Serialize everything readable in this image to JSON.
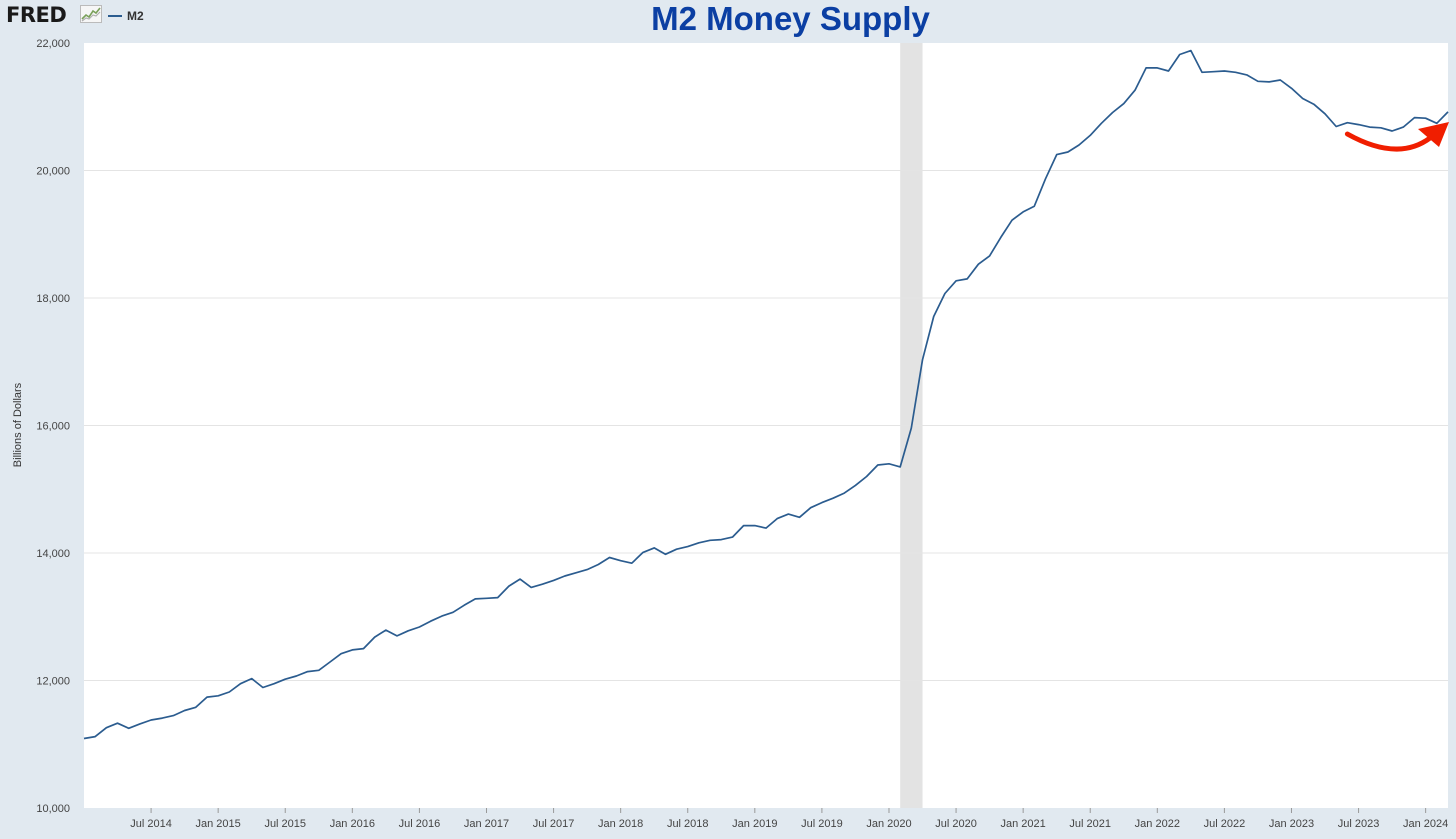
{
  "header": {
    "logo_text": "FRED",
    "logo_icon": "chart-trend-icon",
    "legend_label": "M2",
    "title": "M2 Money Supply"
  },
  "colors": {
    "series": "#2b5c8f",
    "title": "#0b3fa3",
    "recession": "#e3e3e3",
    "annotation_arrow": "#f01e00",
    "background": "#e1e9f0"
  },
  "chart_data": {
    "type": "line",
    "title": "M2 Money Supply",
    "xlabel": "",
    "ylabel": "Billions of Dollars",
    "xlim": [
      "2014-01",
      "2024-03"
    ],
    "ylim": [
      10000,
      22000
    ],
    "grid": true,
    "legend": "top-left",
    "y_ticks": [
      "10,000",
      "12,000",
      "14,000",
      "16,000",
      "18,000",
      "20,000",
      "22,000"
    ],
    "x_ticks": [
      "Jul 2014",
      "Jan 2015",
      "Jul 2015",
      "Jan 2016",
      "Jul 2016",
      "Jan 2017",
      "Jul 2017",
      "Jan 2018",
      "Jul 2018",
      "Jan 2019",
      "Jul 2019",
      "Jan 2020",
      "Jul 2020",
      "Jan 2021",
      "Jul 2021",
      "Jan 2022",
      "Jul 2022",
      "Jan 2023",
      "Jul 2023",
      "Jan 2024"
    ],
    "recession": {
      "start": "2020-02",
      "end": "2020-04"
    },
    "annotation": {
      "type": "arrow",
      "from": "2023-06",
      "to": "2024-03",
      "direction": "up-right"
    },
    "series": [
      {
        "name": "M2",
        "x": [
          "2014-01",
          "2014-02",
          "2014-03",
          "2014-04",
          "2014-05",
          "2014-06",
          "2014-07",
          "2014-08",
          "2014-09",
          "2014-10",
          "2014-11",
          "2014-12",
          "2015-01",
          "2015-02",
          "2015-03",
          "2015-04",
          "2015-05",
          "2015-06",
          "2015-07",
          "2015-08",
          "2015-09",
          "2015-10",
          "2015-11",
          "2015-12",
          "2016-01",
          "2016-02",
          "2016-03",
          "2016-04",
          "2016-05",
          "2016-06",
          "2016-07",
          "2016-08",
          "2016-09",
          "2016-10",
          "2016-11",
          "2016-12",
          "2017-01",
          "2017-02",
          "2017-03",
          "2017-04",
          "2017-05",
          "2017-06",
          "2017-07",
          "2017-08",
          "2017-09",
          "2017-10",
          "2017-11",
          "2017-12",
          "2018-01",
          "2018-02",
          "2018-03",
          "2018-04",
          "2018-05",
          "2018-06",
          "2018-07",
          "2018-08",
          "2018-09",
          "2018-10",
          "2018-11",
          "2018-12",
          "2019-01",
          "2019-02",
          "2019-03",
          "2019-04",
          "2019-05",
          "2019-06",
          "2019-07",
          "2019-08",
          "2019-09",
          "2019-10",
          "2019-11",
          "2019-12",
          "2020-01",
          "2020-02",
          "2020-03",
          "2020-04",
          "2020-05",
          "2020-06",
          "2020-07",
          "2020-08",
          "2020-09",
          "2020-10",
          "2020-11",
          "2020-12",
          "2021-01",
          "2021-02",
          "2021-03",
          "2021-04",
          "2021-05",
          "2021-06",
          "2021-07",
          "2021-08",
          "2021-09",
          "2021-10",
          "2021-11",
          "2021-12",
          "2022-01",
          "2022-02",
          "2022-03",
          "2022-04",
          "2022-05",
          "2022-06",
          "2022-07",
          "2022-08",
          "2022-09",
          "2022-10",
          "2022-11",
          "2022-12",
          "2023-01",
          "2023-02",
          "2023-03",
          "2023-04",
          "2023-05",
          "2023-06",
          "2023-07",
          "2023-08",
          "2023-09",
          "2023-10",
          "2023-11",
          "2023-12",
          "2024-01",
          "2024-02",
          "2024-03"
        ],
        "y": [
          11090,
          11120,
          11260,
          11330,
          11250,
          11320,
          11380,
          11410,
          11450,
          11530,
          11580,
          11740,
          11760,
          11820,
          11950,
          12030,
          11890,
          11950,
          12020,
          12070,
          12140,
          12160,
          12290,
          12420,
          12480,
          12500,
          12680,
          12790,
          12700,
          12780,
          12840,
          12930,
          13010,
          13070,
          13180,
          13280,
          13290,
          13300,
          13480,
          13590,
          13460,
          13510,
          13570,
          13640,
          13690,
          13740,
          13820,
          13930,
          13880,
          13840,
          14010,
          14080,
          13980,
          14060,
          14100,
          14160,
          14200,
          14210,
          14250,
          14430,
          14430,
          14390,
          14540,
          14610,
          14560,
          14710,
          14790,
          14860,
          14940,
          15060,
          15200,
          15380,
          15400,
          15350,
          15960,
          17030,
          17710,
          18070,
          18270,
          18300,
          18530,
          18660,
          18950,
          19220,
          19350,
          19440,
          19870,
          20250,
          20290,
          20400,
          20550,
          20740,
          20910,
          21050,
          21260,
          21610,
          21610,
          21560,
          21820,
          21880,
          21540,
          21550,
          21560,
          21540,
          21500,
          21400,
          21390,
          21420,
          21290,
          21130,
          21040,
          20890,
          20690,
          20750,
          20720,
          20680,
          20670,
          20620,
          20680,
          20830,
          20820,
          20740,
          20920
        ]
      }
    ]
  }
}
